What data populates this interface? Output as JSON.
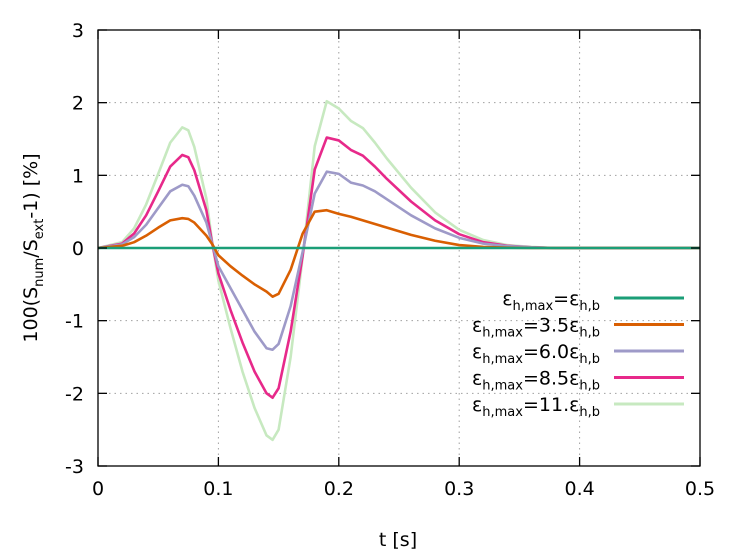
{
  "chart_data": {
    "type": "line",
    "title": "",
    "xlabel": "t [s]",
    "ylabel": {
      "prefix": "100(S",
      "num_sub": "num",
      "middle": "/S",
      "ext_sub": "ext",
      "suffix": "-1) [%]"
    },
    "xlim": [
      0,
      0.5
    ],
    "ylim": [
      -3,
      3
    ],
    "xticks": [
      0,
      0.1,
      0.2,
      0.3,
      0.4,
      0.5
    ],
    "xtick_labels": [
      "0",
      "0.1",
      "0.2",
      "0.3",
      "0.4",
      "0.5"
    ],
    "yticks": [
      -3,
      -2,
      -1,
      0,
      1,
      2,
      3
    ],
    "ytick_labels": [
      "-3",
      "-2",
      "-1",
      "0",
      "1",
      "2",
      "3"
    ],
    "grid": true,
    "legend_position": "bottom-right",
    "x": [
      0,
      0.02,
      0.03,
      0.04,
      0.05,
      0.06,
      0.07,
      0.075,
      0.08,
      0.09,
      0.095,
      0.1,
      0.11,
      0.12,
      0.13,
      0.14,
      0.145,
      0.15,
      0.16,
      0.17,
      0.18,
      0.19,
      0.2,
      0.21,
      0.22,
      0.23,
      0.24,
      0.26,
      0.28,
      0.3,
      0.32,
      0.34,
      0.36,
      0.38,
      0.4,
      0.45,
      0.5
    ],
    "series": [
      {
        "legend": {
          "base": "ε",
          "sub1": "h,max",
          "eq": "=ε",
          "coef": "",
          "sub2": "h,b"
        },
        "color": "#1b9e77",
        "values": [
          0,
          0,
          0,
          0,
          0,
          0,
          0,
          0,
          0,
          0,
          0,
          0,
          0,
          0,
          0,
          0,
          0,
          0,
          0,
          0,
          0,
          0,
          0,
          0,
          0,
          0,
          0,
          0,
          0,
          0,
          0,
          0,
          0,
          0,
          0,
          0,
          0
        ]
      },
      {
        "legend": {
          "base": "ε",
          "sub1": "h,max",
          "eq": "=",
          "coef": "3.5ε",
          "sub2": "h,b"
        },
        "color": "#d95f02",
        "values": [
          0,
          0.03,
          0.08,
          0.17,
          0.28,
          0.38,
          0.41,
          0.4,
          0.35,
          0.17,
          0.05,
          -0.1,
          -0.25,
          -0.38,
          -0.5,
          -0.6,
          -0.67,
          -0.63,
          -0.3,
          0.2,
          0.5,
          0.52,
          0.47,
          0.43,
          0.38,
          0.33,
          0.28,
          0.18,
          0.1,
          0.04,
          0.015,
          0.005,
          0,
          0,
          0,
          0,
          0
        ]
      },
      {
        "legend": {
          "base": "ε",
          "sub1": "h,max",
          "eq": "=",
          "coef": "6.0ε",
          "sub2": "h,b"
        },
        "color": "#9e9ac8",
        "values": [
          0,
          0.05,
          0.15,
          0.32,
          0.55,
          0.78,
          0.87,
          0.85,
          0.72,
          0.35,
          0.05,
          -0.25,
          -0.55,
          -0.85,
          -1.15,
          -1.38,
          -1.4,
          -1.32,
          -0.8,
          -0.05,
          0.75,
          1.05,
          1.02,
          0.9,
          0.86,
          0.78,
          0.67,
          0.45,
          0.27,
          0.14,
          0.06,
          0.025,
          0.01,
          0,
          0,
          0,
          0
        ]
      },
      {
        "legend": {
          "base": "ε",
          "sub1": "h,max",
          "eq": "=",
          "coef": "8.5ε",
          "sub2": "h,b"
        },
        "color": "#e7298a",
        "values": [
          0,
          0.06,
          0.2,
          0.45,
          0.78,
          1.12,
          1.28,
          1.25,
          1.07,
          0.52,
          0.05,
          -0.35,
          -0.85,
          -1.3,
          -1.7,
          -2.0,
          -2.06,
          -1.93,
          -1.15,
          -0.1,
          1.08,
          1.52,
          1.48,
          1.35,
          1.27,
          1.12,
          0.95,
          0.64,
          0.38,
          0.19,
          0.08,
          0.03,
          0.01,
          0,
          0,
          0,
          0
        ]
      },
      {
        "legend": {
          "base": "ε",
          "sub1": "h,max",
          "eq": "=",
          "coef": "11.ε",
          "sub2": "h,b"
        },
        "color": "#c7e9c0",
        "values": [
          0,
          0.08,
          0.27,
          0.6,
          1.02,
          1.45,
          1.66,
          1.62,
          1.39,
          0.68,
          0.06,
          -0.45,
          -1.1,
          -1.7,
          -2.2,
          -2.58,
          -2.64,
          -2.5,
          -1.5,
          -0.12,
          1.4,
          2.02,
          1.92,
          1.75,
          1.65,
          1.45,
          1.23,
          0.83,
          0.49,
          0.25,
          0.11,
          0.04,
          0.015,
          0,
          0,
          0,
          0
        ]
      }
    ]
  }
}
